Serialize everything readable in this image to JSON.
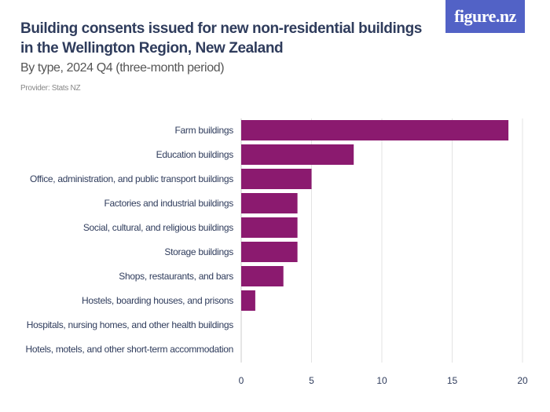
{
  "logo": "figure.nz",
  "title": "Building consents issued for new non-residential buildings in the Wellington Region, New Zealand",
  "subtitle": "By type, 2024 Q4 (three-month period)",
  "provider": "Provider: Stats NZ",
  "chart_data": {
    "type": "bar",
    "orientation": "horizontal",
    "categories": [
      "Farm buildings",
      "Education buildings",
      "Office, administration, and public transport buildings",
      "Factories and industrial buildings",
      "Social, cultural, and religious buildings",
      "Storage buildings",
      "Shops, restaurants, and bars",
      "Hostels, boarding houses, and prisons",
      "Hospitals, nursing homes, and other health buildings",
      "Hotels, motels, and other short-term accommodation"
    ],
    "values": [
      19,
      8,
      5,
      4,
      4,
      4,
      3,
      1,
      0,
      0
    ],
    "xlim": [
      0,
      20
    ],
    "xticks": [
      0,
      5,
      10,
      15,
      20
    ],
    "grid": true,
    "bar_color": "#8b1a6f",
    "logo_color": "#5262c6"
  }
}
